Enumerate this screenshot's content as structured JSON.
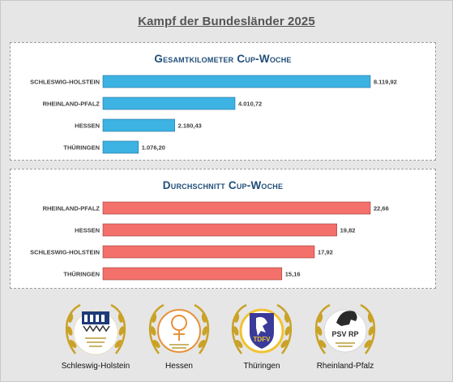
{
  "page": {
    "title": "Kampf der Bundesländer 2025"
  },
  "chart_data": [
    {
      "type": "bar",
      "orientation": "horizontal",
      "title": "Gesamtkilometer Cup-Woche",
      "categories": [
        "SCHLESWIG-HOLSTEIN",
        "RHEINLAND-PFALZ",
        "HESSEN",
        "THÜRINGEN"
      ],
      "values": [
        8119.92,
        4010.72,
        2180.43,
        1076.2
      ],
      "value_labels": [
        "8.119,92",
        "4.010,72",
        "2.180,43",
        "1.076,20"
      ],
      "xlim": [
        0,
        8119.92
      ],
      "grid": false,
      "color": "#3cb3e3",
      "border_color": "#1f6f9a"
    },
    {
      "type": "bar",
      "orientation": "horizontal",
      "title": "Durchschnitt Cup-Woche",
      "categories": [
        "RHEINLAND-PFALZ",
        "HESSEN",
        "SCHLESWIG-HOLSTEIN",
        "THÜRINGEN"
      ],
      "values": [
        22.66,
        19.82,
        17.92,
        15.16
      ],
      "value_labels": [
        "22,66",
        "19,82",
        "17,92",
        "15,16"
      ],
      "xlim": [
        0,
        22.66
      ],
      "grid": false,
      "color": "#f4706a",
      "border_color": "#9a3a36"
    }
  ],
  "logos": [
    {
      "name": "Schleswig-Holstein",
      "icon": "castle-gates-crest-icon",
      "badge_text": "",
      "accent": "#c9a227"
    },
    {
      "name": "Hessen",
      "icon": "rider-figure-crest-icon",
      "badge_text": "",
      "accent": "#e8913a"
    },
    {
      "name": "Thüringen",
      "icon": "horse-shield-crest-icon",
      "badge_text": "TDFV",
      "accent": "#3a3a9a"
    },
    {
      "name": "Rheinland-Pfalz",
      "icon": "horse-head-crest-icon",
      "badge_text": "PSV RP",
      "accent": "#2b2b2b"
    }
  ]
}
